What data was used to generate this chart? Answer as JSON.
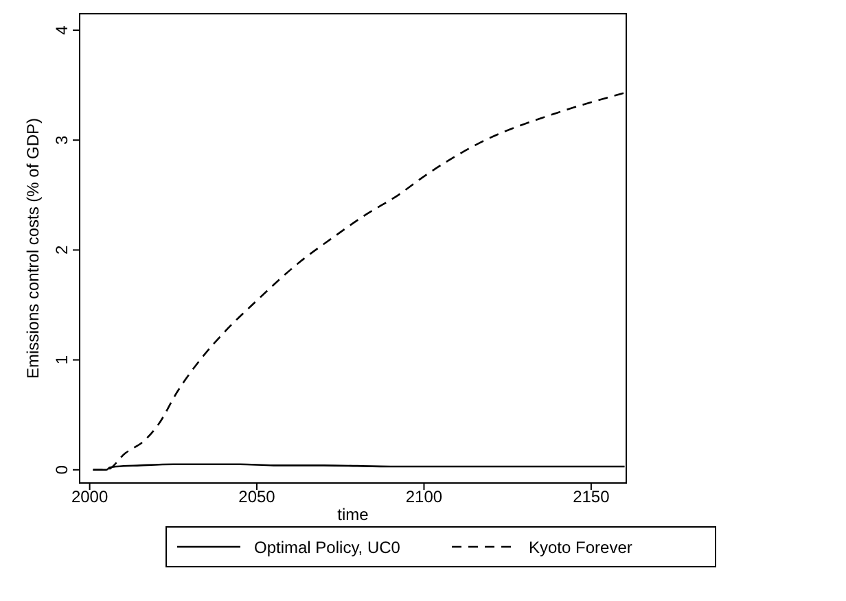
{
  "chart_data": {
    "type": "line",
    "xlabel": "time",
    "ylabel": "Emissions control costs (% of GDP)",
    "xlim": [
      1997,
      2160.5
    ],
    "ylim": [
      -0.12,
      4.15
    ],
    "xticks": [
      2000,
      2050,
      2100,
      2150
    ],
    "yticks": [
      0,
      1,
      2,
      3,
      4
    ],
    "grid": false,
    "legend": "bottom",
    "marker": "none",
    "series": [
      {
        "name": "Optimal Policy, UC0",
        "color": "#000000",
        "line_style": "solid",
        "x": [
          2001,
          2005,
          2006,
          2008,
          2015,
          2025,
          2035,
          2045,
          2055,
          2070,
          2090,
          2120,
          2160
        ],
        "values": [
          0,
          0,
          0.02,
          0.03,
          0.04,
          0.05,
          0.05,
          0.05,
          0.04,
          0.04,
          0.03,
          0.03,
          0.03
        ]
      },
      {
        "name": "Kyoto Forever",
        "color": "#000000",
        "line_style": "dashed",
        "x": [
          2001,
          2005,
          2010.6,
          2016.5,
          2020.5,
          2026.4,
          2033.3,
          2040.2,
          2050,
          2062.8,
          2072.6,
          2082.5,
          2092.3,
          2100,
          2117,
          2140,
          2160
        ],
        "values": [
          0,
          0,
          0.15,
          0.27,
          0.41,
          0.72,
          1.01,
          1.25,
          1.54,
          1.89,
          2.11,
          2.32,
          2.5,
          2.67,
          2.98,
          3.25,
          3.43
        ]
      }
    ]
  }
}
